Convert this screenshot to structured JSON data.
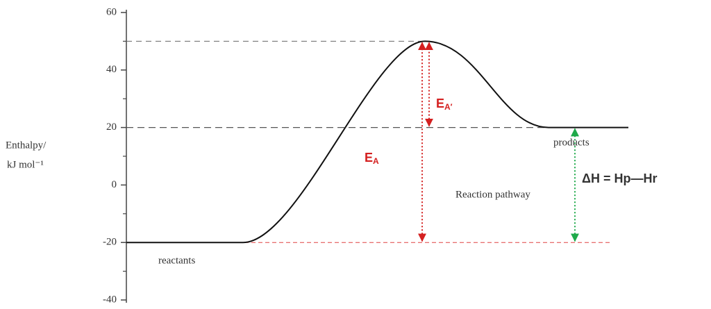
{
  "chart_data": {
    "type": "energy-profile",
    "ylabel": [
      "Enthalpy/",
      "kJ mol⁻¹"
    ],
    "ylim": [
      -40,
      60
    ],
    "yticks": [
      60,
      40,
      20,
      0,
      -20,
      -40
    ],
    "minor_yticks": [
      50,
      30,
      10,
      -10,
      -30
    ],
    "levels": [
      {
        "name": "reactants",
        "value": -20
      },
      {
        "name": "products",
        "value": 20
      },
      {
        "value": 50
      }
    ],
    "xlabel": "Reaction pathway",
    "annotations": {
      "ea": {
        "main": "E",
        "sub": "A",
        "color": "#d42020"
      },
      "ea_reverse": {
        "main": "E",
        "sub": "A′",
        "color": "#d42020"
      },
      "delta_h": {
        "text": "ΔH = Hp—Hr",
        "color": "#1faa4a"
      }
    }
  }
}
